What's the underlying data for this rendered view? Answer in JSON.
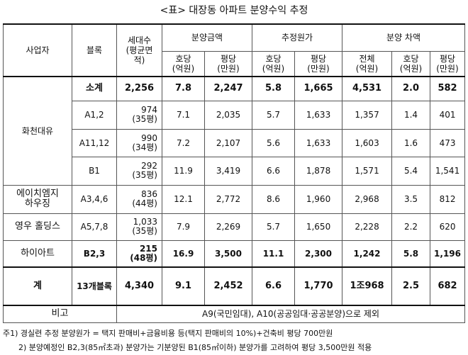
{
  "title": "<표> 대장동 아파트 분양수익 추정",
  "header": {
    "company": "사업자",
    "block": "블록",
    "units_line1": "세대수",
    "units_line2": "(평균면",
    "units_line3": "적)",
    "sales_group": "분양금액",
    "cost_group": "추정원가",
    "diff_group": "분양 차액",
    "per_unit": "호당",
    "per_pyeong": "평당",
    "total": "전체",
    "unit_eok": "(억원)",
    "unit_man": "(만원)"
  },
  "rows": {
    "subtotal": {
      "label": "소계",
      "units": "2,256",
      "s_unit": "7.8",
      "s_py": "2,247",
      "c_unit": "5.8",
      "c_py": "1,665",
      "d_total": "4,531",
      "d_unit": "2.0",
      "d_py": "582"
    },
    "hwacheon_group": "화천대유",
    "a12": {
      "block": "A1,2",
      "units": "974",
      "area": "(35평)",
      "s_unit": "7.1",
      "s_py": "2,035",
      "c_unit": "5.7",
      "c_py": "1,633",
      "d_total": "1,357",
      "d_unit": "1.4",
      "d_py": "401"
    },
    "a1112": {
      "block": "A11,12",
      "units": "990",
      "area": "(34평)",
      "s_unit": "7.2",
      "s_py": "2,107",
      "c_unit": "5.6",
      "c_py": "1,633",
      "d_total": "1,603",
      "d_unit": "1.6",
      "d_py": "473"
    },
    "b1": {
      "block": "B1",
      "units": "292",
      "area": "(35평)",
      "s_unit": "11.9",
      "s_py": "3,419",
      "c_unit": "6.6",
      "c_py": "1,878",
      "d_total": "1,571",
      "d_unit": "5.4",
      "d_py": "1,541"
    },
    "hsh": {
      "company_line1": "에이치엠지",
      "company_line2": "하우징",
      "block": "A3,4,6",
      "units": "836",
      "area": "(44평)",
      "s_unit": "12.1",
      "s_py": "2,772",
      "c_unit": "8.6",
      "c_py": "1,960",
      "d_total": "2,968",
      "d_unit": "3.5",
      "d_py": "812"
    },
    "youngwoo": {
      "company": "영우 홀딩스",
      "block": "A5,7,8",
      "units": "1,033",
      "area": "(35평)",
      "s_unit": "7.9",
      "s_py": "2,269",
      "c_unit": "5.7",
      "c_py": "1,650",
      "d_total": "2,228",
      "d_unit": "2.2",
      "d_py": "620"
    },
    "hiart": {
      "company": "하이아트",
      "block": "B2,3",
      "units": "215",
      "area": "(48평)",
      "s_unit": "16.9",
      "s_py": "3,500",
      "c_unit": "11.1",
      "c_py": "2,300",
      "d_total": "1,242",
      "d_unit": "5.8",
      "d_py": "1,196"
    },
    "total": {
      "label": "계",
      "block": "13개블록",
      "units": "4,340",
      "s_unit": "9.1",
      "s_py": "2,452",
      "c_unit": "6.6",
      "c_py": "1,770",
      "d_total": "1조968",
      "d_unit": "2.5",
      "d_py": "682"
    }
  },
  "remark_label": "비고",
  "remark_text": "A9(국민임대), A10(공공임대·공공분양)으로 제외",
  "notes": {
    "n1": "주1) 경실련 추정 분양원가 = 택지 판매비+금융비용 등(택지 판매비의 10%)+건축비 평당 700만원",
    "n2": "2) 분양예정인 B2,3(85㎡초과) 분양가는 기분양된 B1(85㎡이하) 분양가를 고려하여 평당 3,500만원 적용"
  }
}
